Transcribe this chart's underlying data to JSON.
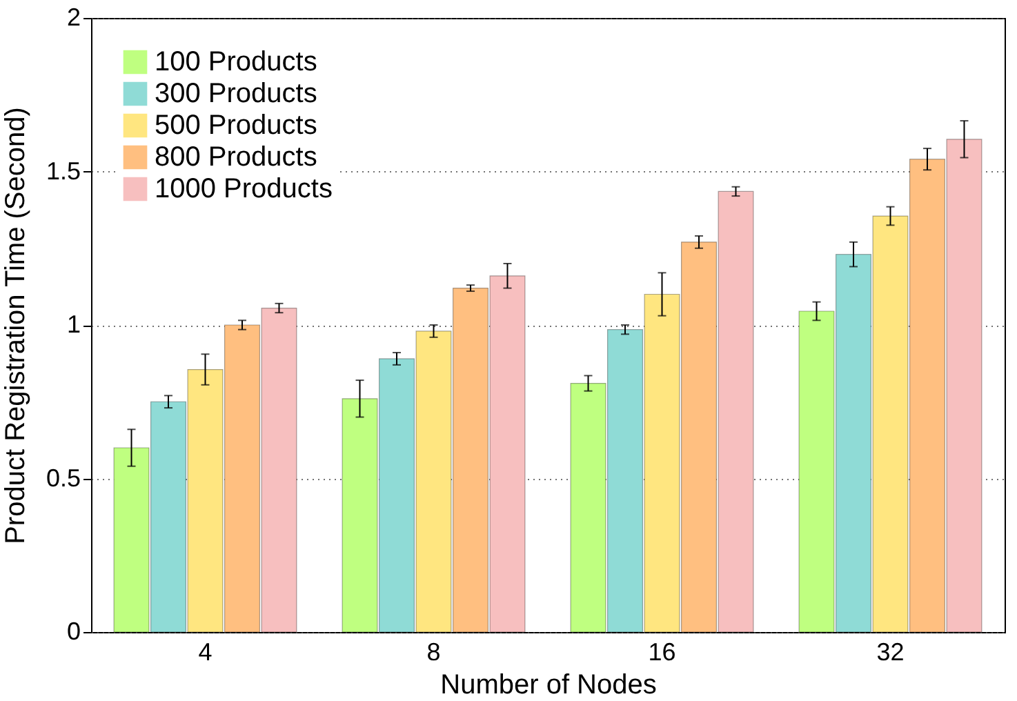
{
  "chart_data": {
    "type": "bar",
    "xlabel": "Number of Nodes",
    "ylabel": "Product Registration Time (Second)",
    "categories": [
      "4",
      "8",
      "16",
      "32"
    ],
    "series": [
      {
        "name": "100 Products",
        "color": "#bfff80",
        "values": [
          0.6,
          0.76,
          0.81,
          1.045
        ],
        "errors": [
          0.06,
          0.06,
          0.025,
          0.03
        ]
      },
      {
        "name": "300 Products",
        "color": "#8fdbd6",
        "values": [
          0.75,
          0.89,
          0.985,
          1.23
        ],
        "errors": [
          0.02,
          0.02,
          0.015,
          0.04
        ]
      },
      {
        "name": "500 Products",
        "color": "#ffe680",
        "values": [
          0.855,
          0.98,
          1.1,
          1.355
        ],
        "errors": [
          0.05,
          0.02,
          0.07,
          0.03
        ]
      },
      {
        "name": "800 Products",
        "color": "#ffbf80",
        "values": [
          1.0,
          1.12,
          1.27,
          1.54
        ],
        "errors": [
          0.015,
          0.01,
          0.02,
          0.035
        ]
      },
      {
        "name": "1000 Products",
        "color": "#f7bfbf",
        "values": [
          1.055,
          1.16,
          1.435,
          1.605
        ],
        "errors": [
          0.015,
          0.04,
          0.015,
          0.06
        ]
      }
    ],
    "ylim": [
      0,
      2
    ],
    "yticks": [
      0,
      0.5,
      1,
      1.5,
      2
    ],
    "grid": "y",
    "line_style": "dotted",
    "legend": "top left"
  }
}
